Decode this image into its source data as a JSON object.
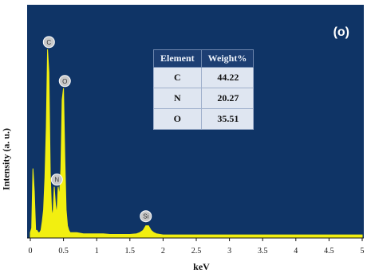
{
  "panel_label": "(o)",
  "table": {
    "headers": [
      "Element",
      "Weight%"
    ],
    "rows": [
      {
        "element": "C",
        "weight": "44.22"
      },
      {
        "element": "N",
        "weight": "20.27"
      },
      {
        "element": "O",
        "weight": "35.51"
      }
    ]
  },
  "colors": {
    "background": "#0f3466",
    "spectrum": "#f2ef10",
    "peak_marker": "#c9c9c9",
    "table_header": "#1d3f73"
  },
  "chart_data": {
    "type": "line",
    "xlabel": "keV",
    "ylabel": "Intensity (a. u.)",
    "xlim": [
      0,
      5
    ],
    "ylim": [
      0,
      100
    ],
    "x_ticks": [
      "0",
      "0.5",
      "1",
      "1.5",
      "2",
      "2.5",
      "3",
      "3.5",
      "4",
      "4.5",
      "5"
    ],
    "y_ticks_labeled": false,
    "grid": false,
    "legend": "none",
    "series": [
      {
        "x": [
          0.0,
          0.02,
          0.04,
          0.06,
          0.08,
          0.1,
          0.12,
          0.14,
          0.16,
          0.18,
          0.2,
          0.22,
          0.24,
          0.26,
          0.28,
          0.3,
          0.32,
          0.34,
          0.36,
          0.38,
          0.4,
          0.42,
          0.44,
          0.46,
          0.48,
          0.5,
          0.52,
          0.54,
          0.56,
          0.58,
          0.6,
          0.65,
          0.7,
          0.8,
          0.9,
          1.0,
          1.1,
          1.2,
          1.3,
          1.4,
          1.5,
          1.6,
          1.65,
          1.7,
          1.74,
          1.78,
          1.82,
          1.86,
          1.9,
          2.0,
          2.2,
          2.5,
          3.0,
          3.5,
          4.0,
          4.5,
          5.0
        ],
        "y": [
          2,
          4,
          30,
          20,
          3,
          3,
          2,
          2,
          3,
          7,
          12,
          26,
          48,
          82,
          72,
          28,
          12,
          9,
          22,
          14,
          10,
          22,
          18,
          30,
          60,
          65,
          34,
          12,
          5,
          3,
          2,
          2,
          2,
          1.5,
          1.5,
          1.5,
          1.5,
          1.2,
          1.2,
          1.2,
          1.2,
          1.5,
          2,
          3,
          5,
          5,
          3,
          2,
          1.5,
          1,
          1,
          1,
          1,
          1,
          1,
          1,
          1
        ]
      }
    ],
    "peak_labels": [
      {
        "element": "C",
        "x": 0.28,
        "y": 82
      },
      {
        "element": "O",
        "x": 0.52,
        "y": 65
      },
      {
        "element": "N",
        "x": 0.4,
        "y": 22
      },
      {
        "element": "Si",
        "x": 1.74,
        "y": 6
      }
    ]
  }
}
